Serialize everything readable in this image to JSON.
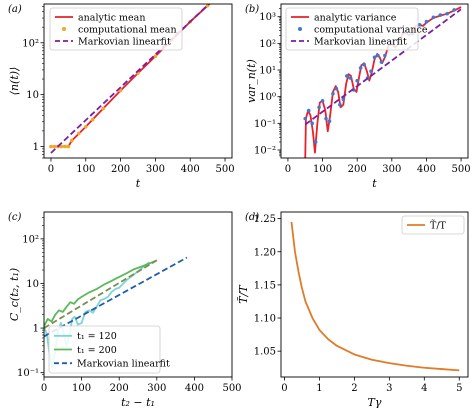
{
  "chart_data": [
    {
      "panel": "(a)",
      "type": "line",
      "ylog": true,
      "xlabel": "t",
      "ylabel": "⟨n(t)⟩",
      "xlim": [
        -20,
        520
      ],
      "ylim": [
        0.6,
        560
      ],
      "xticks": [
        0,
        100,
        200,
        300,
        400,
        500
      ],
      "yticks": [
        {
          "v": 1,
          "label": "1"
        },
        {
          "v": 10,
          "label": "10"
        },
        {
          "v": 100,
          "label": "10²"
        }
      ],
      "legend": "top-left",
      "series": [
        {
          "name": "analytic mean",
          "style": "solid",
          "color": "#e8212a",
          "x": [
            0,
            50,
            60,
            100,
            150,
            200,
            250,
            300,
            350,
            400,
            450,
            500
          ],
          "y": [
            1,
            1,
            1.3,
            2.4,
            5.4,
            12,
            26,
            55,
            118,
            255,
            520,
            1100
          ]
        },
        {
          "name": "computational mean",
          "style": "dots",
          "color": "#f5a623",
          "x": [
            0,
            10,
            20,
            30,
            40,
            50,
            60,
            80,
            100,
            120,
            150,
            200,
            250,
            300,
            350,
            400,
            450,
            480
          ],
          "y": [
            1,
            1,
            1,
            1,
            1,
            1,
            1.3,
            1.8,
            2.4,
            3.3,
            5.4,
            12,
            26,
            55,
            118,
            255,
            520,
            790
          ]
        },
        {
          "name": "Markovian linearfit",
          "style": "dashed",
          "color": "#7b1fa2",
          "x": [
            0,
            500
          ],
          "y": [
            0.75,
            1100
          ]
        }
      ]
    },
    {
      "panel": "(b)",
      "type": "line",
      "ylog": true,
      "xlabel": "t",
      "ylabel": "var_n(t)",
      "xlim": [
        -20,
        520
      ],
      "ylim": [
        0.005,
        3000
      ],
      "xticks": [
        0,
        100,
        200,
        300,
        400,
        500
      ],
      "yticks": [
        {
          "v": 0.01,
          "label": "10⁻²"
        },
        {
          "v": 0.1,
          "label": "10⁻¹"
        },
        {
          "v": 1,
          "label": "10⁰"
        },
        {
          "v": 10,
          "label": "10¹"
        },
        {
          "v": 100,
          "label": "10²"
        },
        {
          "v": 1000,
          "label": "10³"
        }
      ],
      "legend": "top-left",
      "series": [
        {
          "name": "analytic variance",
          "style": "solid",
          "color": "#e8212a",
          "x": [
            50,
            52,
            58,
            65,
            72,
            78,
            85,
            92,
            100,
            108,
            115,
            122,
            130,
            138,
            145,
            152,
            160,
            168,
            175,
            182,
            190,
            198,
            205,
            212,
            220,
            228,
            235,
            242,
            250,
            258,
            265,
            272,
            280,
            290,
            300,
            310,
            320,
            330,
            340,
            350,
            360,
            370,
            380,
            390,
            400,
            420,
            440,
            460,
            480,
            500
          ],
          "y": [
            0.005,
            0.15,
            0.3,
            0.2,
            0.05,
            0.008,
            0.1,
            0.6,
            0.7,
            0.3,
            0.05,
            0.2,
            1.5,
            2.5,
            1.5,
            0.4,
            0.5,
            3,
            7,
            6,
            2,
            1.5,
            5,
            15,
            18,
            9,
            4,
            8,
            25,
            40,
            30,
            18,
            30,
            80,
            100,
            70,
            100,
            220,
            250,
            200,
            250,
            450,
            500,
            450,
            600,
            900,
            1100,
            1300,
            1700,
            2300
          ]
        },
        {
          "name": "computational variance",
          "style": "dots",
          "color": "#3a7bd5",
          "x": [
            50,
            60,
            70,
            80,
            90,
            100,
            110,
            120,
            130,
            140,
            150,
            160,
            170,
            180,
            190,
            200,
            210,
            220,
            230,
            240,
            250,
            260,
            270,
            280,
            300,
            320,
            340,
            360,
            380,
            400,
            420,
            440,
            460,
            480
          ],
          "y": [
            0.15,
            0.3,
            0.1,
            0.02,
            0.4,
            0.7,
            0.15,
            0.12,
            1.3,
            2,
            0.5,
            0.8,
            6,
            5,
            1.8,
            4,
            12,
            16,
            5,
            9,
            30,
            35,
            20,
            35,
            110,
            110,
            260,
            230,
            500,
            650,
            950,
            1150,
            1300,
            1800
          ]
        },
        {
          "name": "Markovian linearfit",
          "style": "dashed",
          "color": "#7b1fa2",
          "x": [
            50,
            500
          ],
          "y": [
            0.09,
            1900
          ]
        }
      ]
    },
    {
      "panel": "(c)",
      "type": "line",
      "ylog": true,
      "xlabel": "t₂ − t₁",
      "ylabel": "C_c(t₂, t₁)",
      "xlim": [
        0,
        500
      ],
      "ylim": [
        0.08,
        400
      ],
      "xticks": [
        0,
        100,
        200,
        300,
        400,
        500
      ],
      "yticks": [
        {
          "v": 0.1,
          "label": "10⁻¹"
        },
        {
          "v": 1,
          "label": "1"
        },
        {
          "v": 10,
          "label": "10"
        },
        {
          "v": 100,
          "label": "10²"
        }
      ],
      "legend": "bottom-left",
      "series": [
        {
          "name": "t₁ = 120",
          "style": "solid",
          "color": "#7fd4d4",
          "x": [
            0,
            8,
            15,
            22,
            30,
            38,
            45,
            52,
            60,
            68,
            75,
            82,
            90,
            100,
            110,
            120,
            130,
            140,
            150,
            160,
            170,
            180,
            190,
            200,
            220,
            240,
            260,
            280
          ],
          "y": [
            1.1,
            0.7,
            0.25,
            0.13,
            0.3,
            0.9,
            1.3,
            0.8,
            0.4,
            0.7,
            1.6,
            1.8,
            1.2,
            1.3,
            2.3,
            2.5,
            2.2,
            3,
            4.2,
            4.5,
            5,
            6.5,
            7.5,
            8,
            12,
            16,
            22,
            30
          ]
        },
        {
          "name": "t₁ = 200",
          "style": "solid",
          "color": "#5cb85c",
          "x": [
            0,
            10,
            20,
            30,
            40,
            50,
            60,
            70,
            80,
            90,
            100,
            120,
            140,
            160,
            180,
            200,
            220,
            240,
            260,
            280,
            300
          ],
          "y": [
            1.1,
            1.6,
            1.4,
            2,
            2.5,
            2.3,
            3,
            3.8,
            3.5,
            4.4,
            5,
            6.3,
            7.5,
            9.5,
            11.5,
            14,
            17,
            21,
            24,
            28,
            33
          ]
        },
        {
          "name": "Markovian linearfit",
          "style": "dashed",
          "color": "#1f5fa8",
          "x": [
            0,
            380
          ],
          "y": [
            0.65,
            38
          ]
        },
        {
          "name": "",
          "style": "dashed",
          "color": "#7a8f50",
          "x": [
            0,
            300
          ],
          "y": [
            1.0,
            33
          ]
        }
      ]
    },
    {
      "panel": "(d)",
      "type": "line",
      "ylog": false,
      "xlabel": "Tγ",
      "ylabel": "T̃/T",
      "xlim": [
        -0.1,
        5.25
      ],
      "ylim": [
        1.011,
        1.26
      ],
      "xticks": [
        0,
        1,
        2,
        3,
        4,
        5
      ],
      "yticks": [
        {
          "v": 1.05,
          "label": "1.05"
        },
        {
          "v": 1.1,
          "label": "1.10"
        },
        {
          "v": 1.15,
          "label": "1.15"
        },
        {
          "v": 1.2,
          "label": "1.20"
        },
        {
          "v": 1.25,
          "label": "1.25"
        }
      ],
      "legend": "top-right",
      "series": [
        {
          "name": "T̃/T",
          "style": "solid",
          "color": "#e07b28",
          "x": [
            0.2,
            0.3,
            0.4,
            0.5,
            0.6,
            0.8,
            1.0,
            1.25,
            1.5,
            2.0,
            2.5,
            3.0,
            3.5,
            4.0,
            4.5,
            5.0
          ],
          "y": [
            1.245,
            1.2,
            1.17,
            1.145,
            1.125,
            1.1,
            1.082,
            1.068,
            1.058,
            1.045,
            1.037,
            1.032,
            1.028,
            1.025,
            1.023,
            1.021
          ]
        }
      ]
    }
  ]
}
